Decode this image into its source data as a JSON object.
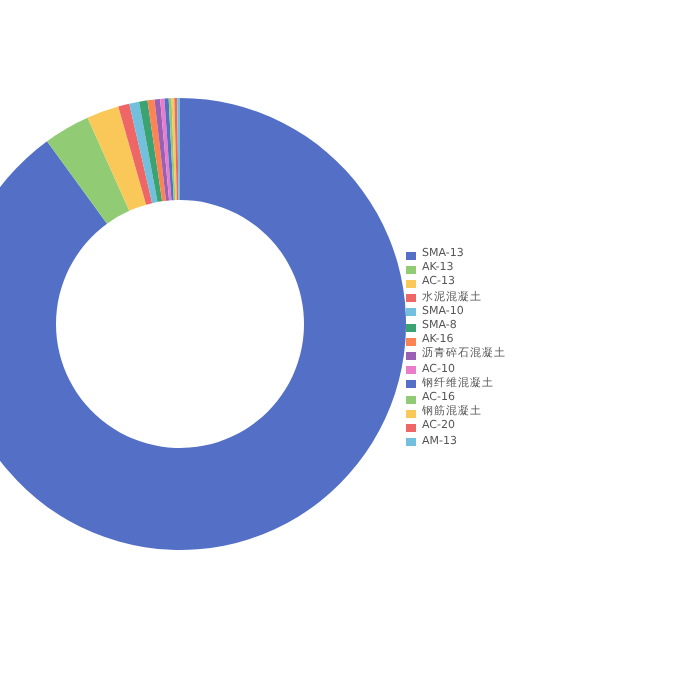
{
  "chart_data": {
    "type": "donut",
    "categories": [
      "SMA-13",
      "AK-13",
      "AC-13",
      "水泥混凝土",
      "SMA-10",
      "SMA-8",
      "AK-16",
      "沥青碎石混凝土",
      "AC-10",
      "钢纤维混凝土",
      "AC-16",
      "钢筋混凝土",
      "AC-20",
      "AM-13"
    ],
    "values": [
      89.9,
      3.3,
      2.3,
      0.8,
      0.7,
      0.6,
      0.5,
      0.4,
      0.3,
      0.3,
      0.2,
      0.2,
      0.2,
      0.2
    ],
    "colors": [
      "#5470c6",
      "#91cc75",
      "#fac858",
      "#ee6666",
      "#73c0de",
      "#3ba272",
      "#fc8452",
      "#9a60b4",
      "#ea7ccc",
      "#5470c6",
      "#91cc75",
      "#fac858",
      "#ee6666",
      "#73c0de"
    ],
    "legend": "right"
  }
}
